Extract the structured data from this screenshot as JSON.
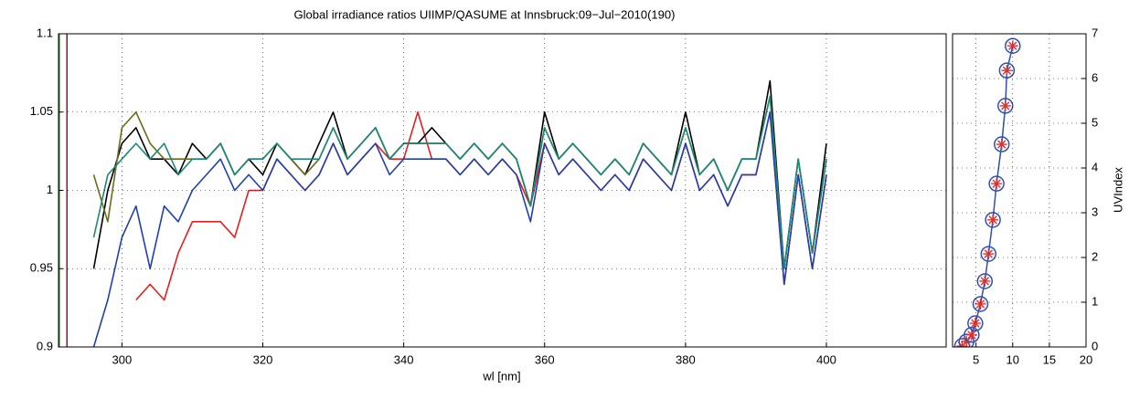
{
  "chart_data": [
    {
      "type": "line",
      "title": "Global irradiance ratios UIIMP/QASUME at Innsbruck:09−Jul−2010(190)",
      "x_label": "wl [nm]",
      "xlim": [
        291,
        417
      ],
      "xticks": [
        300,
        320,
        340,
        360,
        380,
        400
      ],
      "ylim": [
        0.9,
        1.1
      ],
      "yticks": [
        0.9,
        0.95,
        1,
        1.05,
        1.1
      ],
      "grid": true,
      "vlines": [
        {
          "x": 291.1,
          "color": "#1a7a1a"
        },
        {
          "x": 292.2,
          "color": "#8b1a1a"
        }
      ],
      "x": [
        296,
        298,
        300,
        302,
        304,
        306,
        308,
        310,
        312,
        314,
        316,
        318,
        320,
        322,
        324,
        326,
        328,
        330,
        332,
        334,
        336,
        338,
        340,
        342,
        344,
        346,
        348,
        350,
        352,
        354,
        356,
        358,
        360,
        362,
        364,
        366,
        368,
        370,
        372,
        374,
        376,
        378,
        380,
        382,
        384,
        386,
        388,
        390,
        392,
        394,
        396,
        398,
        400
      ],
      "series": [
        {
          "color": "#e02020",
          "values": [
            null,
            null,
            null,
            0.93,
            0.94,
            0.93,
            0.96,
            0.98,
            0.98,
            0.98,
            0.97,
            1.0,
            1.0,
            1.02,
            1.01,
            1.0,
            1.01,
            1.03,
            1.01,
            1.02,
            1.03,
            1.02,
            1.02,
            1.05,
            1.02,
            1.02,
            1.01,
            1.02,
            1.01,
            1.02,
            1.01,
            0.99,
            1.03,
            1.01,
            1.02,
            1.01,
            1.0,
            1.01,
            1.0,
            1.02,
            1.01,
            1.0,
            1.03,
            1.0,
            1.01,
            0.99,
            1.01,
            1.01,
            1.05,
            0.94,
            1.01,
            0.95,
            1.01
          ]
        },
        {
          "color": "#2040b0",
          "values": [
            0.9,
            0.93,
            0.97,
            0.99,
            0.95,
            0.99,
            0.98,
            1.0,
            1.01,
            1.02,
            1.0,
            1.01,
            1.0,
            1.02,
            1.01,
            1.0,
            1.01,
            1.03,
            1.01,
            1.02,
            1.03,
            1.01,
            1.02,
            1.02,
            1.02,
            1.02,
            1.01,
            1.02,
            1.01,
            1.02,
            1.01,
            0.98,
            1.03,
            1.01,
            1.02,
            1.01,
            1.0,
            1.01,
            1.0,
            1.02,
            1.01,
            1.0,
            1.03,
            1.0,
            1.01,
            0.99,
            1.01,
            1.01,
            1.05,
            0.94,
            1.01,
            0.95,
            1.01
          ]
        },
        {
          "color": "#000000",
          "values": [
            0.95,
            1.0,
            1.03,
            1.04,
            1.02,
            1.02,
            1.01,
            1.03,
            1.02,
            1.03,
            1.01,
            1.02,
            1.01,
            1.03,
            1.02,
            1.01,
            1.03,
            1.05,
            1.02,
            1.03,
            1.04,
            1.02,
            1.03,
            1.03,
            1.04,
            1.03,
            1.02,
            1.03,
            1.02,
            1.03,
            1.02,
            0.99,
            1.05,
            1.02,
            1.03,
            1.02,
            1.01,
            1.02,
            1.01,
            1.03,
            1.02,
            1.01,
            1.05,
            1.01,
            1.02,
            1.0,
            1.02,
            1.02,
            1.07,
            0.95,
            1.02,
            0.96,
            1.03
          ]
        },
        {
          "color": "#6b6b1a",
          "values": [
            1.01,
            0.98,
            1.04,
            1.05,
            1.03,
            1.02,
            1.02,
            1.02,
            1.02,
            1.03,
            1.01,
            1.02,
            1.02,
            1.03,
            1.02,
            1.01,
            1.02,
            1.04,
            1.02,
            1.03,
            1.04,
            1.02,
            1.03,
            1.03,
            1.03,
            1.03,
            1.02,
            1.03,
            1.02,
            1.03,
            1.02,
            0.99,
            1.04,
            1.02,
            1.03,
            1.02,
            1.01,
            1.02,
            1.01,
            1.03,
            1.02,
            1.01,
            1.04,
            1.01,
            1.02,
            1.0,
            1.02,
            1.02,
            1.06,
            0.95,
            1.02,
            0.96,
            1.02
          ]
        },
        {
          "color": "#1a8a7a",
          "values": [
            0.97,
            1.01,
            1.02,
            1.03,
            1.02,
            1.03,
            1.01,
            1.02,
            1.02,
            1.03,
            1.01,
            1.02,
            1.02,
            1.03,
            1.02,
            1.02,
            1.02,
            1.04,
            1.02,
            1.03,
            1.04,
            1.02,
            1.03,
            1.03,
            1.03,
            1.03,
            1.02,
            1.03,
            1.02,
            1.03,
            1.02,
            0.99,
            1.04,
            1.02,
            1.03,
            1.02,
            1.01,
            1.02,
            1.01,
            1.03,
            1.02,
            1.01,
            1.04,
            1.01,
            1.02,
            1.0,
            1.02,
            1.02,
            1.06,
            0.95,
            1.02,
            0.96,
            1.02
          ]
        }
      ]
    },
    {
      "type": "scatter",
      "y_label": "UVIndex",
      "xlim": [
        1.8,
        20
      ],
      "xticks": [
        5,
        10,
        15,
        20
      ],
      "ylim": [
        0,
        7
      ],
      "yticks": [
        0,
        1,
        2,
        3,
        4,
        5,
        6,
        7
      ],
      "grid": true,
      "line_color": "#3050b0",
      "marker_color": "#e03030",
      "x": [
        3.1,
        3.7,
        4.4,
        4.9,
        5.6,
        6.2,
        6.7,
        7.3,
        7.8,
        8.5,
        9.0,
        9.2,
        10.0
      ],
      "values": [
        0.02,
        0.12,
        0.27,
        0.53,
        0.96,
        1.47,
        2.08,
        2.84,
        3.65,
        4.53,
        5.39,
        6.18,
        6.73
      ]
    }
  ]
}
